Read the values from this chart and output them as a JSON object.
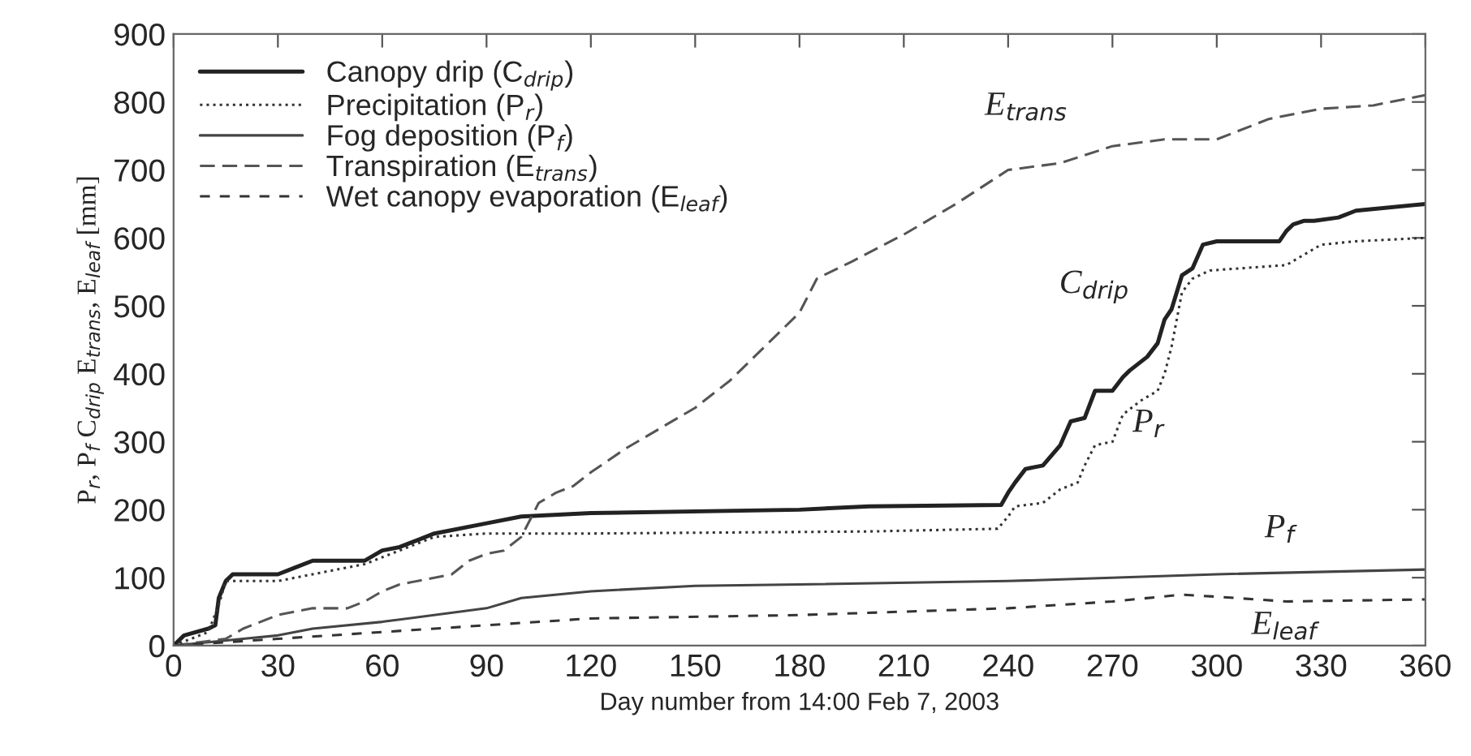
{
  "chart_data": {
    "type": "line",
    "xlabel": "Day number from 14:00 Feb 7, 2003",
    "ylabel": "P$_{r}$, P$_{f}$ C$_{drip}$ E$_{trans}$, E$_{leaf}$ [mm]",
    "xlim": [
      0,
      360
    ],
    "xticks": [
      0,
      30,
      60,
      90,
      120,
      150,
      180,
      210,
      240,
      270,
      300,
      330,
      360
    ],
    "ylim": [
      0,
      900
    ],
    "yticks": [
      0,
      100,
      200,
      300,
      400,
      500,
      600,
      700,
      800,
      900
    ],
    "grid": false,
    "legend": "top left",
    "series": [
      {
        "name": "Canopy drip (C$_{drip}$)",
        "color": "#222222",
        "line_style": "solid",
        "x": [
          0,
          3,
          10,
          12,
          13,
          15,
          17,
          30,
          35,
          40,
          55,
          60,
          65,
          70,
          75,
          90,
          100,
          120,
          180,
          200,
          238,
          240,
          242,
          245,
          250,
          255,
          258,
          262,
          265,
          270,
          273,
          275,
          280,
          283,
          285,
          287,
          290,
          293,
          296,
          300,
          318,
          320,
          322,
          325,
          328,
          335,
          340,
          360
        ],
        "values": [
          0,
          15,
          25,
          30,
          70,
          95,
          105,
          105,
          115,
          125,
          125,
          140,
          145,
          155,
          165,
          180,
          190,
          195,
          200,
          205,
          207,
          225,
          240,
          260,
          265,
          295,
          330,
          335,
          375,
          375,
          395,
          405,
          425,
          445,
          480,
          495,
          545,
          555,
          590,
          595,
          595,
          610,
          620,
          625,
          625,
          630,
          640,
          650
        ]
      },
      {
        "name": "Precipitation (P$_{r}$)",
        "color": "#333333",
        "line_style": "dotted",
        "x": [
          0,
          10,
          13,
          15,
          30,
          40,
          55,
          60,
          70,
          75,
          90,
          120,
          200,
          237,
          240,
          242,
          250,
          255,
          260,
          262,
          265,
          270,
          273,
          278,
          283,
          285,
          287,
          290,
          293,
          298,
          320,
          325,
          330,
          340,
          360
        ],
        "values": [
          0,
          20,
          60,
          95,
          95,
          105,
          120,
          130,
          150,
          160,
          165,
          165,
          168,
          172,
          190,
          205,
          210,
          230,
          240,
          265,
          295,
          300,
          340,
          360,
          375,
          400,
          440,
          520,
          540,
          552,
          560,
          575,
          590,
          595,
          600
        ]
      },
      {
        "name": "Fog deposition (P$_{f}$)",
        "color": "#444444",
        "line_style": "solid",
        "x": [
          0,
          20,
          30,
          40,
          60,
          90,
          100,
          120,
          150,
          180,
          240,
          300,
          360
        ],
        "values": [
          0,
          10,
          15,
          25,
          35,
          55,
          70,
          80,
          88,
          90,
          95,
          105,
          112
        ]
      },
      {
        "name": "Transpiration (E$_{trans}$)",
        "color": "#555555",
        "line_style": "dashed",
        "x": [
          0,
          15,
          20,
          30,
          40,
          50,
          55,
          60,
          65,
          75,
          80,
          85,
          90,
          95,
          100,
          105,
          110,
          115,
          120,
          130,
          140,
          150,
          160,
          170,
          180,
          185,
          195,
          210,
          225,
          240,
          255,
          270,
          285,
          300,
          315,
          330,
          345,
          360
        ],
        "values": [
          0,
          10,
          25,
          45,
          55,
          55,
          65,
          80,
          90,
          100,
          105,
          125,
          135,
          140,
          160,
          210,
          225,
          235,
          255,
          290,
          320,
          350,
          390,
          440,
          490,
          540,
          565,
          605,
          650,
          700,
          710,
          735,
          745,
          745,
          775,
          790,
          795,
          810
        ]
      },
      {
        "name": "Wet canopy evaporation (E$_{leaf}$)",
        "color": "#333333",
        "line_style": "dashed",
        "x": [
          0,
          30,
          60,
          90,
          120,
          180,
          240,
          270,
          290,
          300,
          320,
          360
        ],
        "values": [
          0,
          10,
          20,
          30,
          40,
          45,
          55,
          65,
          75,
          72,
          65,
          68
        ]
      }
    ],
    "annotations": [
      {
        "text": "C$_{drip}$",
        "x": 270,
        "y": 375
      },
      {
        "text": "P$_{r}$",
        "x": 270,
        "y": 300
      },
      {
        "text": "P$_{f}$",
        "x": 300,
        "y": 105
      },
      {
        "text": "E$_{leaf}$",
        "x": 300,
        "y": 72
      },
      {
        "text": "E$_{trans}$",
        "x": 240,
        "y": 700
      }
    ]
  }
}
